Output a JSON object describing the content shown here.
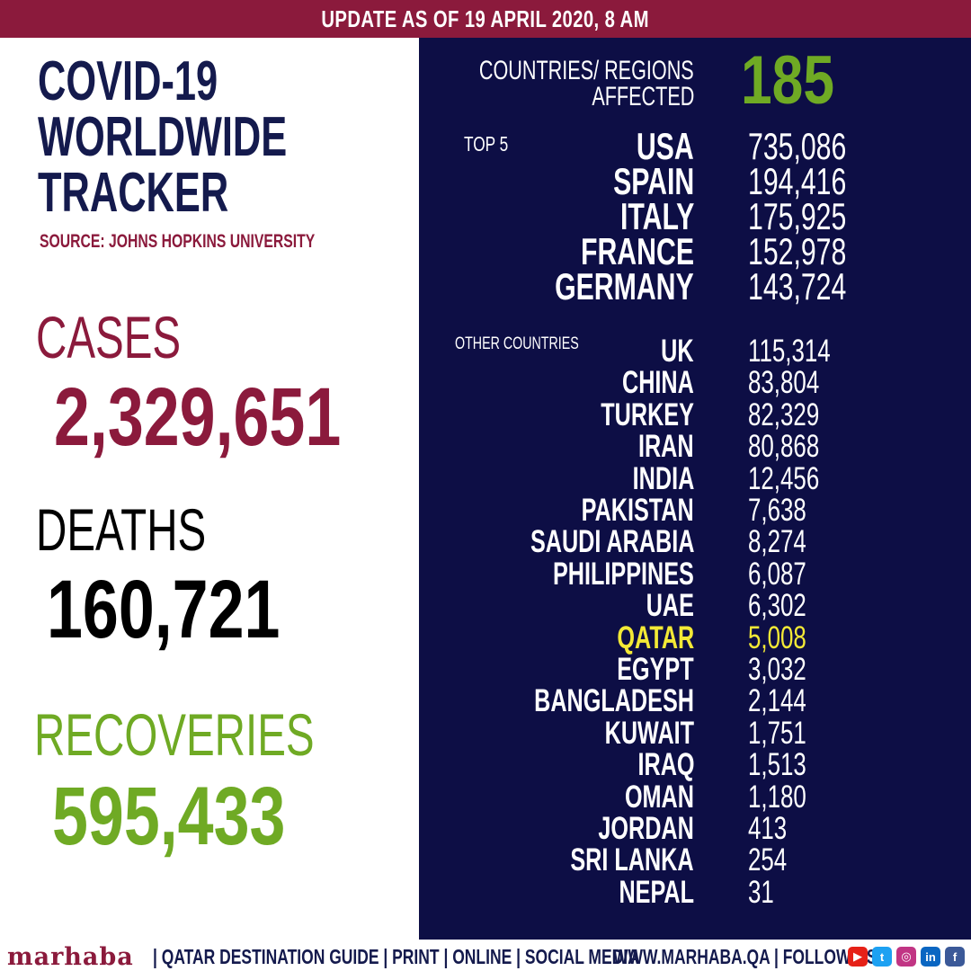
{
  "banner": "UPDATE AS OF 19 APRIL 2020, 8 AM",
  "title": {
    "line1": "COVID-19",
    "line2": "WORLDWIDE",
    "line3": "TRACKER"
  },
  "source": "SOURCE: JOHNS HOPKINS UNIVERSITY",
  "stats": {
    "cases_label": "CASES",
    "cases_value": "2,329,651",
    "deaths_label": "DEATHS",
    "deaths_value": "160,721",
    "recoveries_label": "RECOVERIES",
    "recoveries_value": "595,433"
  },
  "affected": {
    "label_line1": "COUNTRIES/ REGIONS",
    "label_line2": "AFFECTED",
    "value": "185"
  },
  "top5_label": "TOP 5",
  "top5": [
    {
      "country": "USA",
      "count": "735,086"
    },
    {
      "country": "SPAIN",
      "count": "194,416"
    },
    {
      "country": "ITALY",
      "count": "175,925"
    },
    {
      "country": "FRANCE",
      "count": "152,978"
    },
    {
      "country": "GERMANY",
      "count": "143,724"
    }
  ],
  "other_label": "OTHER COUNTRIES",
  "others": [
    {
      "country": "UK",
      "count": "115,314"
    },
    {
      "country": "CHINA",
      "count": "83,804"
    },
    {
      "country": "TURKEY",
      "count": "82,329"
    },
    {
      "country": "IRAN",
      "count": "80,868"
    },
    {
      "country": "INDIA",
      "count": "12,456"
    },
    {
      "country": "PAKISTAN",
      "count": "7,638"
    },
    {
      "country": "SAUDI ARABIA",
      "count": "8,274"
    },
    {
      "country": "PHILIPPINES",
      "count": "6,087"
    },
    {
      "country": "UAE",
      "count": "6,302"
    },
    {
      "country": "QATAR",
      "count": "5,008"
    },
    {
      "country": "EGYPT",
      "count": "3,032"
    },
    {
      "country": "BANGLADESH",
      "count": "2,144"
    },
    {
      "country": "KUWAIT",
      "count": "1,751"
    },
    {
      "country": "IRAQ",
      "count": "1,513"
    },
    {
      "country": "OMAN",
      "count": "1,180"
    },
    {
      "country": "JORDAN",
      "count": "413"
    },
    {
      "country": "SRI LANKA",
      "count": "254"
    },
    {
      "country": "NEPAL",
      "count": "31"
    }
  ],
  "footer": {
    "logo": "marhaba",
    "tagline": "| QATAR DESTINATION GUIDE | PRINT | ONLINE | SOCIAL MEDIA",
    "website": "WWW.MARHABA.QA | FOLLOW US",
    "social": [
      {
        "icon": "youtube-icon",
        "glyph": "▶",
        "color": "#e62117"
      },
      {
        "icon": "twitter-icon",
        "glyph": "t",
        "color": "#1da1f2"
      },
      {
        "icon": "instagram-icon",
        "glyph": "◎",
        "color": "#c13584"
      },
      {
        "icon": "linkedin-icon",
        "glyph": "in",
        "color": "#0a66c2"
      },
      {
        "icon": "facebook-icon",
        "glyph": "f",
        "color": "#3b5998"
      }
    ]
  },
  "colors": {
    "maroon": "#8b1a3c",
    "navy": "#141a4d",
    "panel": "#0d0e45",
    "green": "#6faa24",
    "highlight": "#f3e936"
  }
}
